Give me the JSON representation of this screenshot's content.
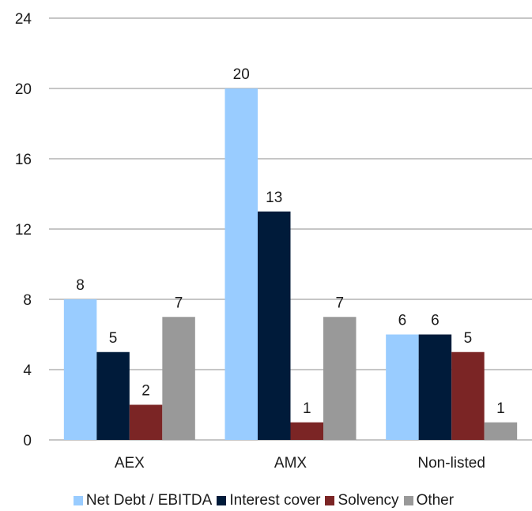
{
  "chart_data": {
    "type": "bar",
    "categories": [
      "AEX",
      "AMX",
      "Non-listed"
    ],
    "series": [
      {
        "name": "Net Debt / EBITDA",
        "values": [
          8,
          20,
          6
        ],
        "color": "#99CCFF"
      },
      {
        "name": "Interest cover",
        "values": [
          5,
          13,
          6
        ],
        "color": "#001B3A"
      },
      {
        "name": "Solvency",
        "values": [
          2,
          1,
          5
        ],
        "color": "#7B2525"
      },
      {
        "name": "Other",
        "values": [
          7,
          7,
          1
        ],
        "color": "#999999"
      }
    ],
    "ylim": [
      0,
      24
    ],
    "yticks": [
      0,
      4,
      8,
      12,
      16,
      20,
      24
    ],
    "grid": true,
    "data_labels": true,
    "legend_position": "bottom",
    "title": "",
    "xlabel": "",
    "ylabel": ""
  }
}
